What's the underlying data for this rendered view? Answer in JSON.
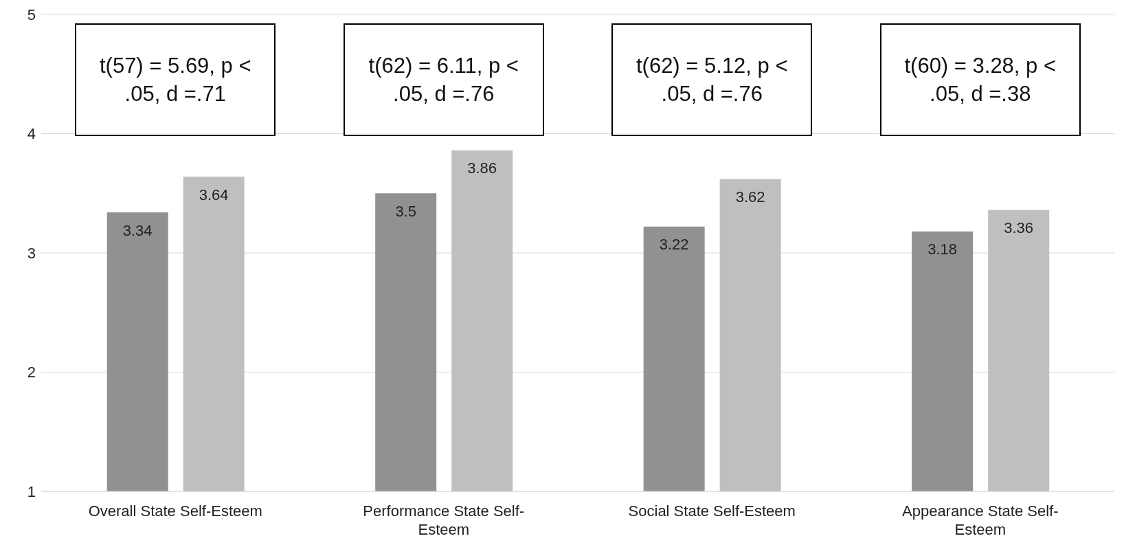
{
  "chart_data": {
    "type": "bar",
    "categories": [
      "Overall State Self-Esteem",
      "Performance State Self-Esteem",
      "Social State Self-Esteem",
      "Appearance State Self-Esteem"
    ],
    "series": [
      {
        "color": "#919191",
        "values": [
          3.34,
          3.5,
          3.22,
          3.18
        ]
      },
      {
        "color": "#bfbfbf",
        "values": [
          3.64,
          3.86,
          3.62,
          3.36
        ]
      }
    ],
    "ylim": [
      1,
      5
    ],
    "yticks": [
      1,
      2,
      3,
      4,
      5
    ],
    "grid": "y",
    "data_labels": true,
    "legend": false,
    "annotations": [
      "t(57) = 5.69, p < .05, d =.71",
      "t(62) = 6.11, p < .05, d =.76",
      "t(62) = 5.12, p < .05, d =.76",
      "t(60) = 3.28, p < .05, d =.38"
    ]
  }
}
